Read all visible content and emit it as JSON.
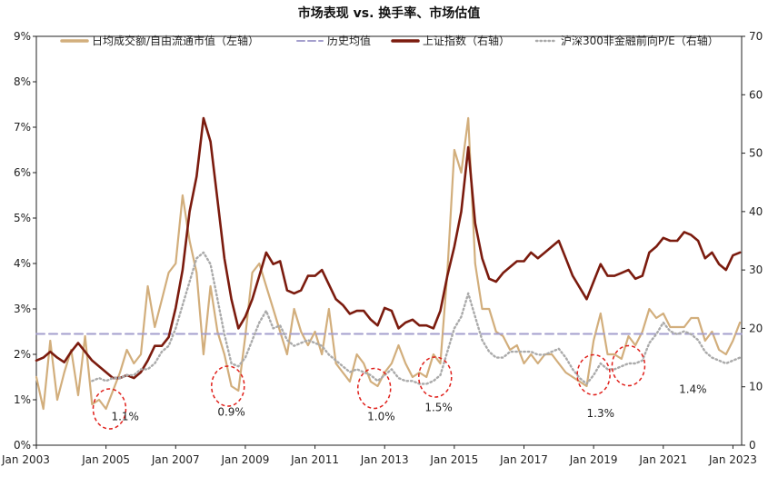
{
  "chart_data": {
    "type": "line",
    "title": "市场表现 vs. 换手率、市场估值",
    "left_axis": {
      "ylim": [
        0,
        9
      ],
      "ticks": [
        "0%",
        "1%",
        "2%",
        "3%",
        "4%",
        "5%",
        "6%",
        "7%",
        "8%",
        "9%"
      ]
    },
    "right_axis": {
      "ylim": [
        0,
        70
      ],
      "ticks": [
        "0",
        "10",
        "20",
        "30",
        "40",
        "50",
        "60",
        "70"
      ]
    },
    "x_axis": {
      "range": [
        2003.0,
        2023.25
      ],
      "ticks": [
        "Jan 2003",
        "Jan 2005",
        "Jan 2007",
        "Jan 2009",
        "Jan 2011",
        "Jan 2013",
        "Jan 2015",
        "Jan 2017",
        "Jan 2019",
        "Jan 2021",
        "Jan 2023"
      ]
    },
    "legend_position": "top",
    "grid": false,
    "series": [
      {
        "name": "日均成交额/自由流通市值（左轴）",
        "axis": "left",
        "color": "#d2ae7c",
        "style": "line",
        "x": [
          2003.0,
          2003.2,
          2003.4,
          2003.6,
          2003.8,
          2004.0,
          2004.2,
          2004.4,
          2004.6,
          2004.8,
          2005.0,
          2005.2,
          2005.4,
          2005.6,
          2005.8,
          2006.0,
          2006.2,
          2006.4,
          2006.6,
          2006.8,
          2007.0,
          2007.2,
          2007.4,
          2007.6,
          2007.8,
          2008.0,
          2008.2,
          2008.4,
          2008.6,
          2008.8,
          2009.0,
          2009.2,
          2009.4,
          2009.6,
          2009.8,
          2010.0,
          2010.2,
          2010.4,
          2010.6,
          2010.8,
          2011.0,
          2011.2,
          2011.4,
          2011.6,
          2011.8,
          2012.0,
          2012.2,
          2012.4,
          2012.6,
          2012.8,
          2013.0,
          2013.2,
          2013.4,
          2013.6,
          2013.8,
          2014.0,
          2014.2,
          2014.4,
          2014.6,
          2014.8,
          2015.0,
          2015.2,
          2015.4,
          2015.6,
          2015.8,
          2016.0,
          2016.2,
          2016.4,
          2016.6,
          2016.8,
          2017.0,
          2017.2,
          2017.4,
          2017.6,
          2017.8,
          2018.0,
          2018.2,
          2018.4,
          2018.6,
          2018.8,
          2019.0,
          2019.2,
          2019.4,
          2019.6,
          2019.8,
          2020.0,
          2020.2,
          2020.4,
          2020.6,
          2020.8,
          2021.0,
          2021.2,
          2021.4,
          2021.6,
          2021.8,
          2022.0,
          2022.2,
          2022.4,
          2022.6,
          2022.8,
          2023.0,
          2023.2
        ],
        "values": [
          1.5,
          0.8,
          2.3,
          1.0,
          1.6,
          2.1,
          1.1,
          2.4,
          0.9,
          1.0,
          0.8,
          1.2,
          1.6,
          2.1,
          1.8,
          2.0,
          3.5,
          2.6,
          3.2,
          3.8,
          4.0,
          5.5,
          4.5,
          3.8,
          2.0,
          3.5,
          2.5,
          2.0,
          1.3,
          1.2,
          2.4,
          3.8,
          4.0,
          3.5,
          3.0,
          2.5,
          2.0,
          3.0,
          2.5,
          2.2,
          2.5,
          2.0,
          3.0,
          1.8,
          1.6,
          1.4,
          2.0,
          1.8,
          1.4,
          1.3,
          1.6,
          1.8,
          2.2,
          1.8,
          1.5,
          1.6,
          1.5,
          2.0,
          1.8,
          3.8,
          6.5,
          6.0,
          7.2,
          4.0,
          3.0,
          3.0,
          2.5,
          2.4,
          2.1,
          2.2,
          1.8,
          2.0,
          1.8,
          2.0,
          2.0,
          1.8,
          1.6,
          1.5,
          1.4,
          1.3,
          2.3,
          2.9,
          2.0,
          2.0,
          1.9,
          2.4,
          2.2,
          2.5,
          3.0,
          2.8,
          2.9,
          2.6,
          2.6,
          2.6,
          2.8,
          2.8,
          2.3,
          2.5,
          2.1,
          2.0,
          2.3,
          2.7
        ]
      },
      {
        "name": "历史均值",
        "axis": "left",
        "color": "#a49fcd",
        "style": "dashed",
        "x": [
          2003.0,
          2023.25
        ],
        "values": [
          2.45,
          2.45
        ]
      },
      {
        "name": "上证指数（右轴）",
        "axis": "right",
        "color": "#7b1b0e",
        "style": "thick",
        "x": [
          2003.0,
          2003.2,
          2003.4,
          2003.6,
          2003.8,
          2004.0,
          2004.2,
          2004.4,
          2004.6,
          2004.8,
          2005.0,
          2005.2,
          2005.4,
          2005.6,
          2005.8,
          2006.0,
          2006.2,
          2006.4,
          2006.6,
          2006.8,
          2007.0,
          2007.2,
          2007.4,
          2007.6,
          2007.8,
          2008.0,
          2008.2,
          2008.4,
          2008.6,
          2008.8,
          2009.0,
          2009.2,
          2009.4,
          2009.6,
          2009.8,
          2010.0,
          2010.2,
          2010.4,
          2010.6,
          2010.8,
          2011.0,
          2011.2,
          2011.4,
          2011.6,
          2011.8,
          2012.0,
          2012.2,
          2012.4,
          2012.6,
          2012.8,
          2013.0,
          2013.2,
          2013.4,
          2013.6,
          2013.8,
          2014.0,
          2014.2,
          2014.4,
          2014.6,
          2014.8,
          2015.0,
          2015.2,
          2015.4,
          2015.6,
          2015.8,
          2016.0,
          2016.2,
          2016.4,
          2016.6,
          2016.8,
          2017.0,
          2017.2,
          2017.4,
          2017.6,
          2017.8,
          2018.0,
          2018.2,
          2018.4,
          2018.6,
          2018.8,
          2019.0,
          2019.2,
          2019.4,
          2019.6,
          2019.8,
          2020.0,
          2020.2,
          2020.4,
          2020.6,
          2020.8,
          2021.0,
          2021.2,
          2021.4,
          2021.6,
          2021.8,
          2022.0,
          2022.2,
          2022.4,
          2022.6,
          2022.8,
          2023.0,
          2023.2
        ],
        "values": [
          14.5,
          15.0,
          16.0,
          15.0,
          14.2,
          16.0,
          17.5,
          16.0,
          14.5,
          13.5,
          12.5,
          11.5,
          11.5,
          12.0,
          11.5,
          12.5,
          14.5,
          17.0,
          17.0,
          18.5,
          23.5,
          30.0,
          40.0,
          46.0,
          56.0,
          52.0,
          42.0,
          32.0,
          25.0,
          20.0,
          22.0,
          25.0,
          29.0,
          33.0,
          31.0,
          31.5,
          26.5,
          26.0,
          26.5,
          29.0,
          29.0,
          30.0,
          27.5,
          25.0,
          24.0,
          22.5,
          23.0,
          23.0,
          21.5,
          20.5,
          23.5,
          23.0,
          20.0,
          21.0,
          21.5,
          20.5,
          20.5,
          20.0,
          23.0,
          29.0,
          34.0,
          40.0,
          51.0,
          38.0,
          32.0,
          28.5,
          28.0,
          29.5,
          30.5,
          31.5,
          31.5,
          33.0,
          32.0,
          33.0,
          34.0,
          35.0,
          32.0,
          29.0,
          27.0,
          25.0,
          28.0,
          31.0,
          29.0,
          29.0,
          29.5,
          30.0,
          28.5,
          29.0,
          33.0,
          34.0,
          35.5,
          35.0,
          35.0,
          36.5,
          36.0,
          35.0,
          32.0,
          33.0,
          31.0,
          30.0,
          32.5,
          33.0
        ]
      },
      {
        "name": "沪深300非金融前向P/E（右轴）",
        "axis": "right",
        "color": "#aaaaaa",
        "style": "dotted",
        "x": [
          2004.6,
          2004.8,
          2005.0,
          2005.2,
          2005.4,
          2005.6,
          2005.8,
          2006.0,
          2006.2,
          2006.4,
          2006.6,
          2006.8,
          2007.0,
          2007.2,
          2007.4,
          2007.6,
          2007.8,
          2008.0,
          2008.2,
          2008.4,
          2008.6,
          2008.8,
          2009.0,
          2009.2,
          2009.4,
          2009.6,
          2009.8,
          2010.0,
          2010.2,
          2010.4,
          2010.6,
          2010.8,
          2011.0,
          2011.2,
          2011.4,
          2011.6,
          2011.8,
          2012.0,
          2012.2,
          2012.4,
          2012.6,
          2012.8,
          2013.0,
          2013.2,
          2013.4,
          2013.6,
          2013.8,
          2014.0,
          2014.2,
          2014.4,
          2014.6,
          2014.8,
          2015.0,
          2015.2,
          2015.4,
          2015.6,
          2015.8,
          2016.0,
          2016.2,
          2016.4,
          2016.6,
          2016.8,
          2017.0,
          2017.2,
          2017.4,
          2017.6,
          2017.8,
          2018.0,
          2018.2,
          2018.4,
          2018.6,
          2018.8,
          2019.0,
          2019.2,
          2019.4,
          2019.6,
          2019.8,
          2020.0,
          2020.2,
          2020.4,
          2020.6,
          2020.8,
          2021.0,
          2021.2,
          2021.4,
          2021.6,
          2021.8,
          2022.0,
          2022.2,
          2022.4,
          2022.6,
          2022.8,
          2023.0,
          2023.2
        ],
        "values": [
          11.0,
          11.5,
          11.0,
          11.5,
          11.5,
          12.0,
          12.0,
          13.0,
          13.0,
          14.0,
          16.0,
          17.0,
          20.0,
          24.0,
          28.0,
          32.0,
          33.0,
          31.0,
          25.0,
          19.0,
          14.0,
          13.5,
          15.0,
          18.0,
          21.0,
          23.0,
          20.0,
          20.5,
          18.0,
          17.0,
          17.5,
          18.0,
          17.5,
          17.0,
          15.5,
          14.5,
          13.5,
          12.5,
          13.0,
          12.5,
          12.0,
          11.0,
          12.0,
          13.0,
          11.5,
          11.0,
          11.0,
          10.5,
          10.5,
          11.0,
          12.0,
          16.0,
          20.0,
          22.0,
          26.0,
          22.0,
          18.0,
          16.0,
          15.0,
          15.0,
          16.0,
          16.0,
          16.0,
          16.0,
          15.5,
          15.5,
          16.0,
          16.5,
          15.0,
          13.0,
          11.5,
          10.5,
          12.0,
          14.0,
          13.0,
          13.0,
          13.5,
          14.0,
          14.0,
          14.5,
          17.5,
          19.0,
          21.0,
          19.5,
          19.0,
          19.5,
          19.0,
          18.0,
          16.0,
          15.0,
          14.5,
          14.0,
          14.5,
          15.0
        ]
      }
    ],
    "annotations": [
      {
        "label": "1.1%",
        "x": 2005.55,
        "y": 0.55
      },
      {
        "label": "0.9%",
        "x": 2008.6,
        "y": 0.65
      },
      {
        "label": "1.0%",
        "x": 2012.9,
        "y": 0.55
      },
      {
        "label": "1.5%",
        "x": 2014.55,
        "y": 0.75
      },
      {
        "label": "1.3%",
        "x": 2019.2,
        "y": 0.62
      },
      {
        "label": "1.4%",
        "x": 2021.85,
        "y": 1.15
      }
    ],
    "circles": [
      {
        "x": 2005.1,
        "y": 0.8
      },
      {
        "x": 2008.5,
        "y": 1.3
      },
      {
        "x": 2012.7,
        "y": 1.25
      },
      {
        "x": 2014.45,
        "y": 1.5
      },
      {
        "x": 2019.0,
        "y": 1.55
      },
      {
        "x": 2020.0,
        "y": 1.75
      }
    ]
  }
}
